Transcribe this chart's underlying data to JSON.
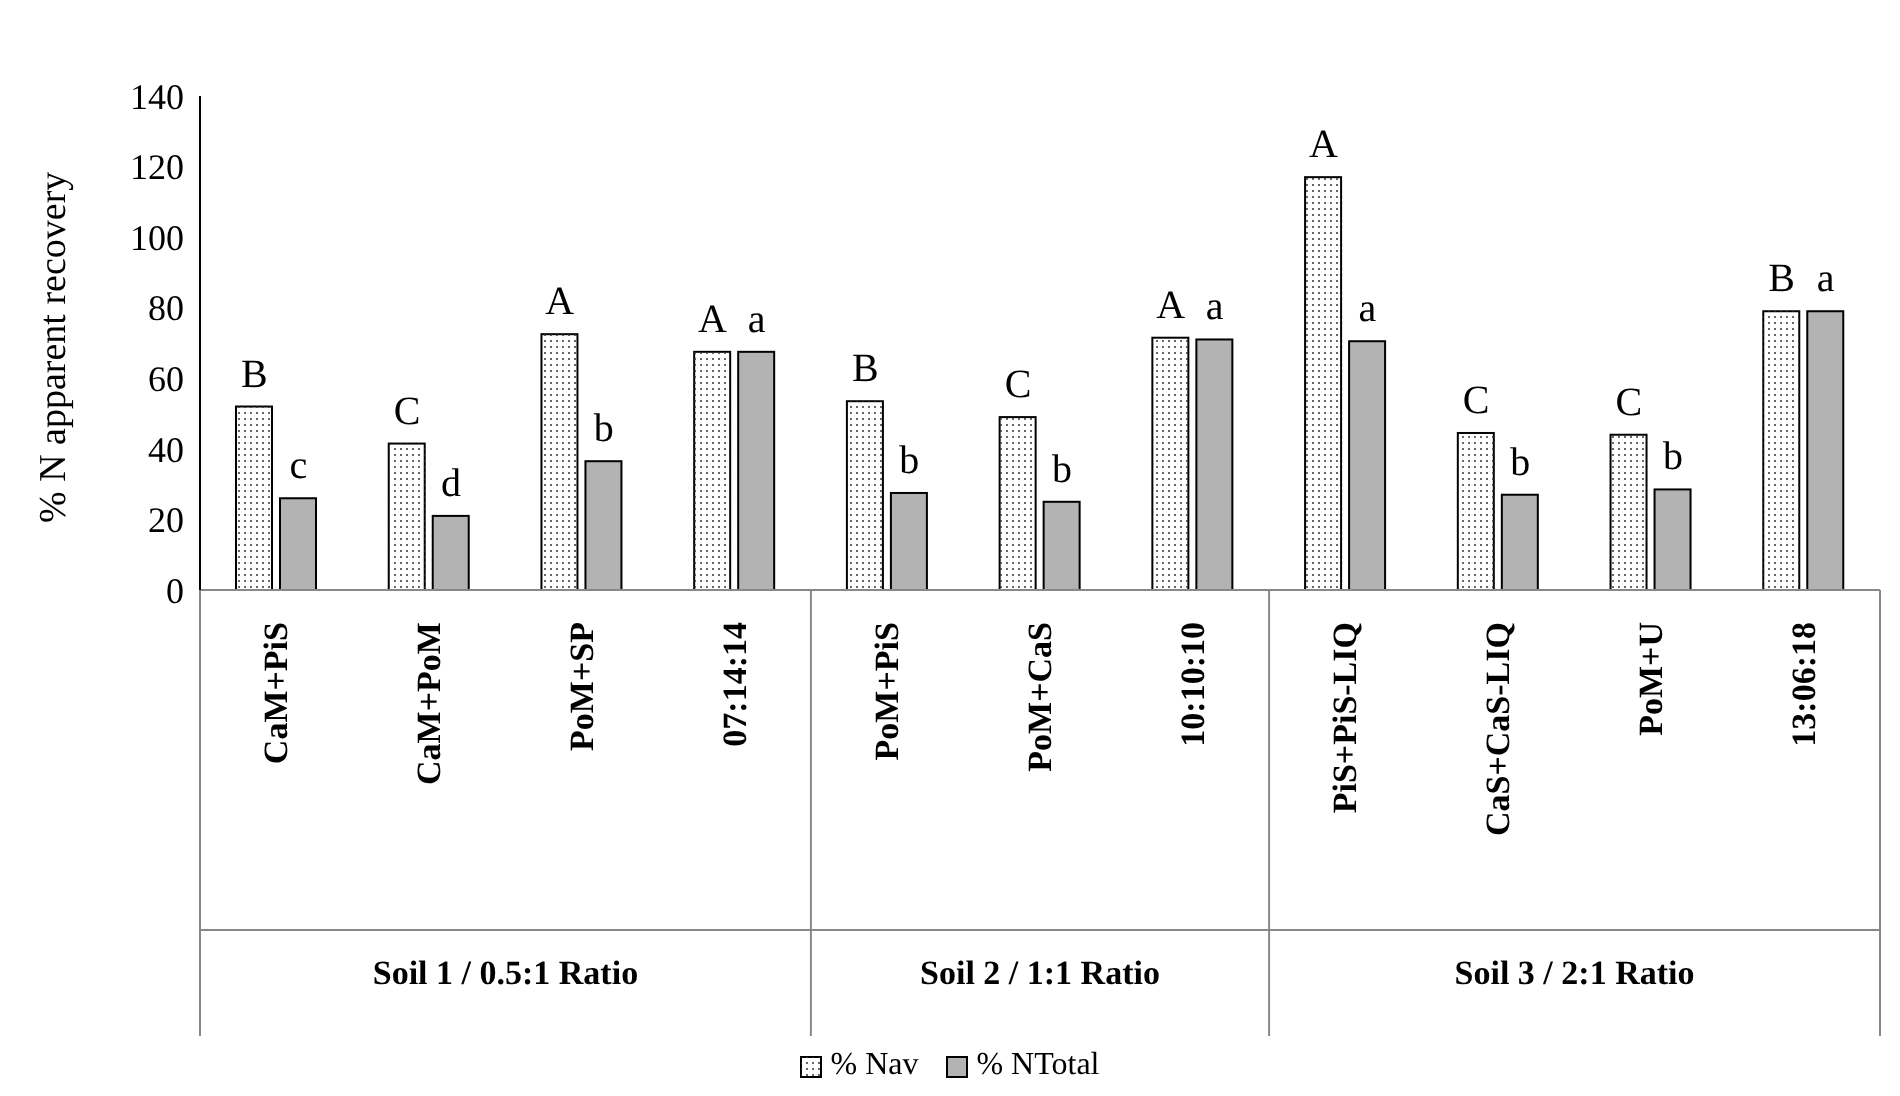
{
  "chart_data": {
    "type": "bar",
    "ylabel": "% N apparent recovery",
    "categories": [
      "CaM+PiS",
      "CaM+PoM",
      "PoM+SP",
      "07:14:14",
      "PoM+PiS",
      "PoM+CaS",
      "10:10:10",
      "PiS+PiS-LIQ",
      "CaS+CaS-LIQ",
      "PoM+U",
      "13:06:18"
    ],
    "series": [
      {
        "name": "% Nav",
        "color": "#ffffff",
        "values": [
          52,
          41.5,
          72.5,
          67.5,
          53.5,
          49,
          71.5,
          117,
          44.5,
          44,
          79
        ]
      },
      {
        "name": "% NTotal",
        "color": "#b3b3b3",
        "values": [
          26,
          21,
          36.5,
          67.5,
          27.5,
          25,
          71,
          70.5,
          27,
          28.5,
          79
        ]
      }
    ],
    "ylim": [
      0,
      140
    ],
    "yticks": [
      0,
      20,
      40,
      60,
      80,
      100,
      120,
      140
    ],
    "grid": false,
    "legend": "bottom",
    "annotations": [
      "Soil 1 / 0.5:1 Ratio",
      "Soil 2 / 1:1 Ratio",
      "Soil 3 / 2:1 Ratio",
      {
        "text": "B",
        "x": "CaM+PiS",
        "y": 52
      },
      {
        "text": "c",
        "x": "CaM+PiS",
        "y": 26
      },
      {
        "text": "C",
        "x": "CaM+PoM",
        "y": 41.5
      },
      {
        "text": "d",
        "x": "CaM+PoM",
        "y": 21
      },
      {
        "text": "A",
        "x": "PoM+SP",
        "y": 72.5
      },
      {
        "text": "b",
        "x": "PoM+SP",
        "y": 36.5
      },
      {
        "text": "A",
        "x": "07:14:14",
        "y": 67.5
      },
      {
        "text": "a",
        "x": "07:14:14",
        "y": 67.5
      },
      {
        "text": "B",
        "x": "PoM+PiS",
        "y": 53.5
      },
      {
        "text": "b",
        "x": "PoM+PiS",
        "y": 27.5
      },
      {
        "text": "C",
        "x": "PoM+CaS",
        "y": 49
      },
      {
        "text": "b",
        "x": "PoM+CaS",
        "y": 25
      },
      {
        "text": "A",
        "x": "10:10:10",
        "y": 71.5
      },
      {
        "text": "a",
        "x": "10:10:10",
        "y": 71
      },
      {
        "text": "A",
        "x": "PiS+PiS-LIQ",
        "y": 117
      },
      {
        "text": "a",
        "x": "PiS+PiS-LIQ",
        "y": 70.5
      },
      {
        "text": "C",
        "x": "CaS+CaS-LIQ",
        "y": 44.5
      },
      {
        "text": "b",
        "x": "CaS+CaS-LIQ",
        "y": 27
      },
      {
        "text": "C",
        "x": "PoM+U",
        "y": 44
      },
      {
        "text": "b",
        "x": "PoM+U",
        "y": 28.5
      },
      {
        "text": "B",
        "x": "13:06:18",
        "y": 79
      },
      {
        "text": "a",
        "x": "13:06:18",
        "y": 79
      }
    ]
  }
}
